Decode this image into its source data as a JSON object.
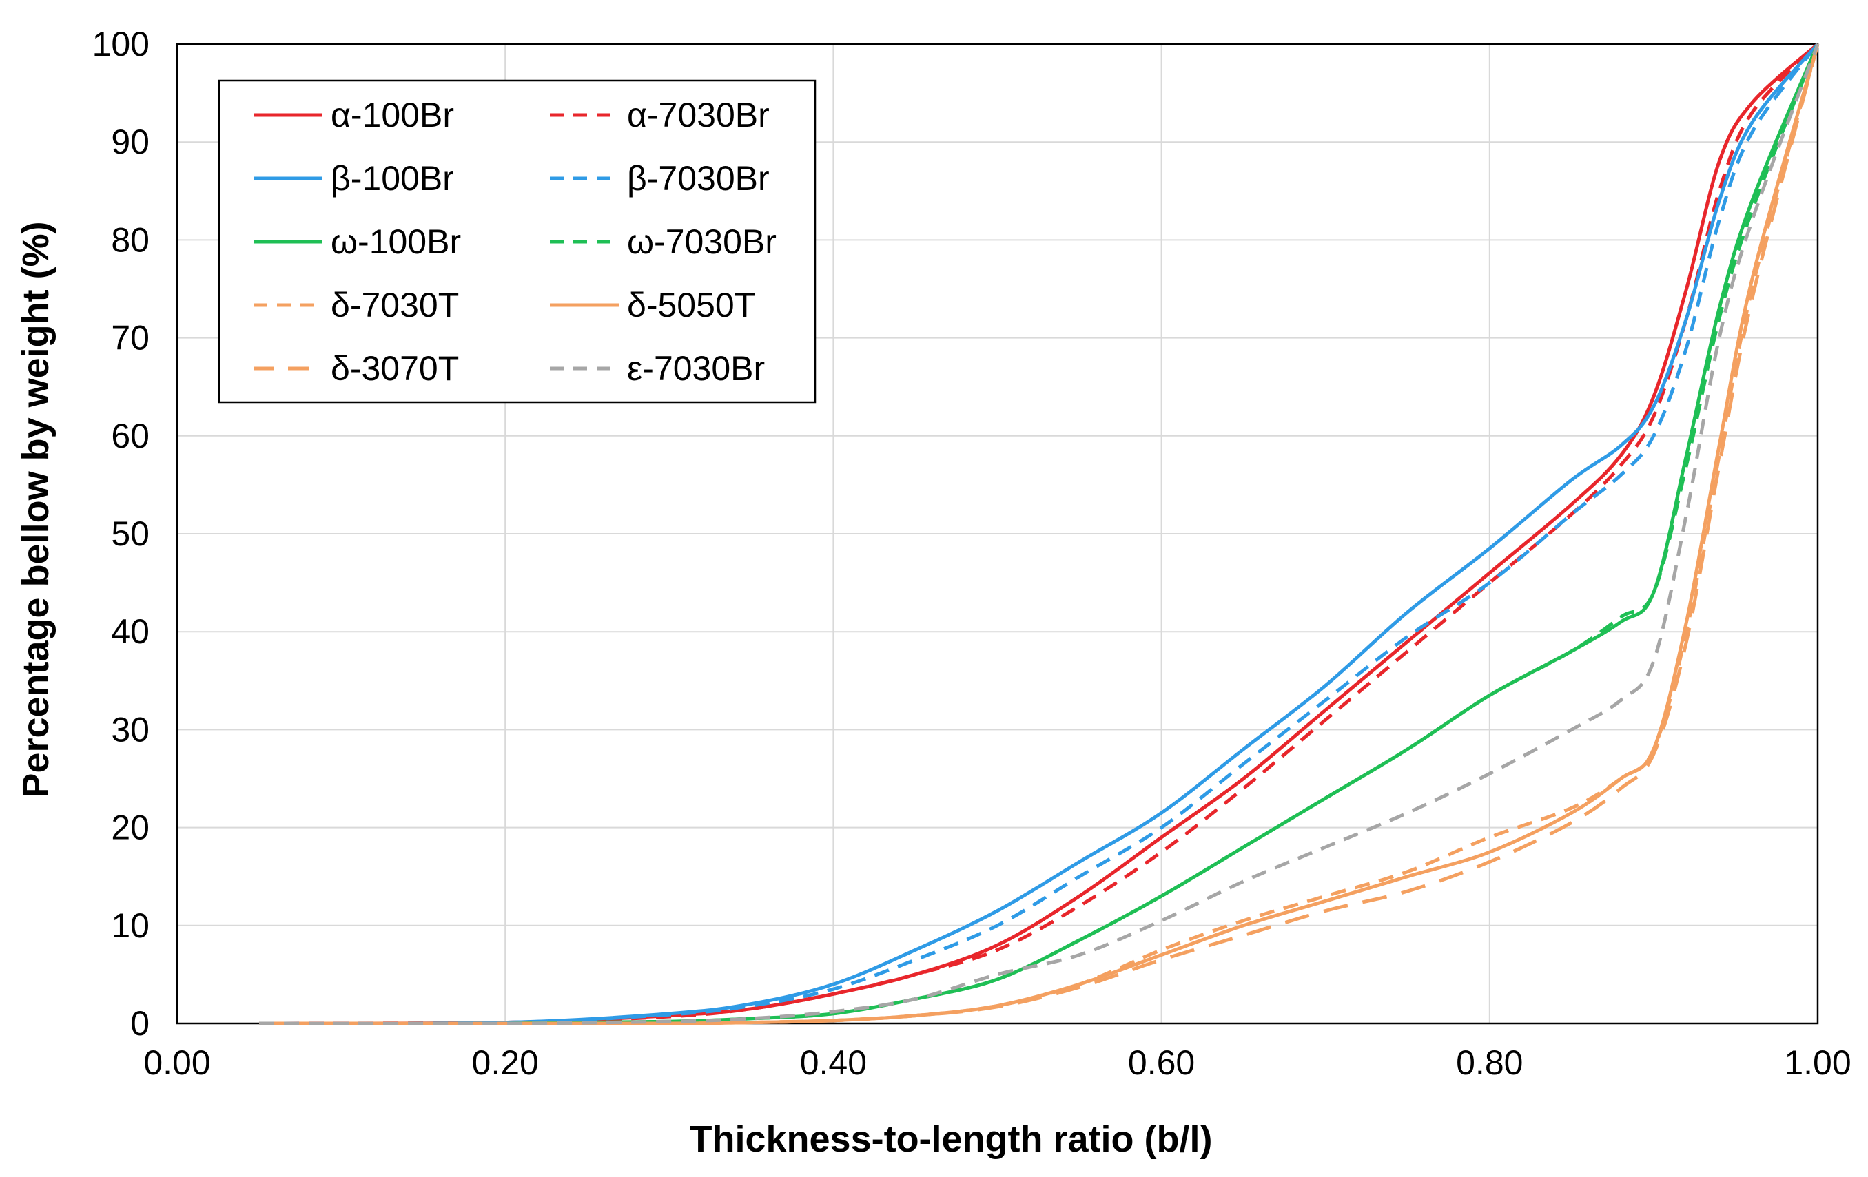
{
  "chart_data": {
    "type": "line",
    "title": "",
    "xlabel": "Thickness-to-length ratio (b/l)",
    "ylabel": "Percentage bellow by weight (%)",
    "xlim": [
      0.0,
      1.0
    ],
    "ylim": [
      0,
      100
    ],
    "xticks": [
      0.0,
      0.2,
      0.4,
      0.6,
      0.8,
      1.0
    ],
    "xtick_labels": [
      "0.00",
      "0.20",
      "0.40",
      "0.60",
      "0.80",
      "1.00"
    ],
    "yticks": [
      0,
      10,
      20,
      30,
      40,
      50,
      60,
      70,
      80,
      90,
      100
    ],
    "ytick_labels": [
      "0",
      "10",
      "20",
      "30",
      "40",
      "50",
      "60",
      "70",
      "80",
      "90",
      "100"
    ],
    "grid": true,
    "legend_position": "top-left",
    "series": [
      {
        "name": "α-100Br",
        "color": "#e8262b",
        "dash": "solid",
        "x": [
          0.05,
          0.2,
          0.3,
          0.35,
          0.4,
          0.45,
          0.5,
          0.55,
          0.6,
          0.65,
          0.7,
          0.75,
          0.8,
          0.85,
          0.88,
          0.9,
          0.92,
          0.94,
          0.96,
          1.0
        ],
        "y": [
          0,
          0.1,
          0.8,
          1.5,
          3,
          5,
          8,
          13,
          19,
          25,
          32,
          39,
          46,
          53,
          58,
          64,
          75,
          88,
          94,
          100
        ]
      },
      {
        "name": "α-7030Br",
        "color": "#e8262b",
        "dash": "dashed",
        "x": [
          0.05,
          0.2,
          0.3,
          0.35,
          0.4,
          0.45,
          0.5,
          0.55,
          0.6,
          0.65,
          0.7,
          0.75,
          0.8,
          0.85,
          0.88,
          0.9,
          0.92,
          0.94,
          0.96,
          1.0
        ],
        "y": [
          0,
          0.1,
          0.7,
          1.5,
          3,
          5,
          7.5,
          12,
          17.5,
          24,
          31,
          38,
          45,
          52,
          57,
          62,
          72,
          85,
          93,
          100
        ]
      },
      {
        "name": "β-100Br",
        "color": "#2f9be6",
        "dash": "solid",
        "x": [
          0.05,
          0.2,
          0.3,
          0.35,
          0.4,
          0.45,
          0.5,
          0.55,
          0.6,
          0.65,
          0.7,
          0.75,
          0.8,
          0.85,
          0.88,
          0.9,
          0.92,
          0.94,
          0.96,
          1.0
        ],
        "y": [
          0,
          0.1,
          1,
          2,
          4,
          7.5,
          11.5,
          16.5,
          21.5,
          28,
          34.5,
          42,
          48.5,
          55.5,
          59,
          63,
          72,
          84,
          92,
          100
        ]
      },
      {
        "name": "β-7030Br",
        "color": "#2f9be6",
        "dash": "dashed",
        "x": [
          0.05,
          0.2,
          0.3,
          0.35,
          0.4,
          0.45,
          0.5,
          0.55,
          0.6,
          0.65,
          0.7,
          0.75,
          0.8,
          0.85,
          0.88,
          0.9,
          0.92,
          0.94,
          0.96,
          1.0
        ],
        "y": [
          0,
          0.1,
          0.9,
          1.8,
          3.5,
          6.5,
          10,
          15,
          20,
          26.5,
          33,
          39.5,
          45,
          52,
          56,
          60,
          69,
          82,
          91,
          100
        ]
      },
      {
        "name": "ω-100Br",
        "color": "#1fbf55",
        "dash": "solid",
        "x": [
          0.05,
          0.2,
          0.3,
          0.35,
          0.4,
          0.45,
          0.5,
          0.55,
          0.6,
          0.65,
          0.7,
          0.75,
          0.8,
          0.85,
          0.88,
          0.9,
          0.92,
          0.94,
          0.96,
          1.0
        ],
        "y": [
          0,
          0,
          0.2,
          0.5,
          1,
          2.5,
          4.5,
          8.5,
          13,
          18,
          23,
          28,
          33.5,
          38,
          41,
          44,
          58,
          73,
          84,
          100
        ]
      },
      {
        "name": "ω-7030Br",
        "color": "#1fbf55",
        "dash": "dashed",
        "x": [
          0.05,
          0.2,
          0.3,
          0.35,
          0.4,
          0.45,
          0.5,
          0.55,
          0.6,
          0.65,
          0.7,
          0.75,
          0.8,
          0.85,
          0.88,
          0.9,
          0.92,
          0.94,
          0.96,
          1.0
        ],
        "y": [
          0,
          0,
          0.2,
          0.5,
          1,
          2.5,
          4.5,
          8.5,
          13,
          18,
          23,
          28,
          33.5,
          38,
          41.5,
          44,
          57,
          72,
          83,
          100
        ]
      },
      {
        "name": "δ-7030T",
        "color": "#f4a060",
        "dash": "dashed",
        "x": [
          0.05,
          0.2,
          0.3,
          0.35,
          0.4,
          0.45,
          0.5,
          0.55,
          0.6,
          0.65,
          0.7,
          0.75,
          0.8,
          0.85,
          0.88,
          0.9,
          0.92,
          0.94,
          0.96,
          1.0
        ],
        "y": [
          0,
          0,
          0,
          0.1,
          0.3,
          0.8,
          1.8,
          4,
          7.5,
          10.5,
          13,
          15.5,
          19,
          22,
          25,
          28,
          40,
          58,
          75,
          100
        ]
      },
      {
        "name": "δ-5050T",
        "color": "#f4a060",
        "dash": "solid",
        "x": [
          0.05,
          0.2,
          0.3,
          0.35,
          0.4,
          0.45,
          0.5,
          0.55,
          0.6,
          0.65,
          0.7,
          0.75,
          0.8,
          0.85,
          0.88,
          0.9,
          0.92,
          0.94,
          0.96,
          1.0
        ],
        "y": [
          0,
          0,
          0,
          0.1,
          0.3,
          0.8,
          1.8,
          4,
          7,
          10,
          12.5,
          15,
          17.5,
          21.5,
          25,
          28,
          41,
          59,
          76,
          100
        ]
      },
      {
        "name": "δ-3070T",
        "color": "#f4a060",
        "dash": "longdash",
        "x": [
          0.05,
          0.2,
          0.3,
          0.35,
          0.4,
          0.45,
          0.5,
          0.55,
          0.6,
          0.65,
          0.7,
          0.75,
          0.8,
          0.85,
          0.88,
          0.9,
          0.92,
          0.94,
          0.96,
          1.0
        ],
        "y": [
          0,
          0,
          0,
          0.1,
          0.3,
          0.8,
          1.7,
          3.7,
          6.5,
          9,
          11.5,
          13.5,
          16.5,
          20.5,
          24,
          27.5,
          39,
          57,
          74,
          100
        ]
      },
      {
        "name": "ε-7030Br",
        "color": "#a6a6a6",
        "dash": "dashed",
        "x": [
          0.05,
          0.2,
          0.3,
          0.35,
          0.4,
          0.45,
          0.5,
          0.55,
          0.6,
          0.65,
          0.7,
          0.75,
          0.8,
          0.85,
          0.88,
          0.9,
          0.92,
          0.94,
          0.96,
          1.0
        ],
        "y": [
          0,
          0,
          0.2,
          0.5,
          1.2,
          2.5,
          5,
          7,
          10.5,
          14.5,
          18,
          21.5,
          25.5,
          30,
          33,
          37,
          52,
          70,
          82,
          100
        ]
      }
    ],
    "legend_rows": [
      [
        "α-100Br",
        "α-7030Br"
      ],
      [
        "β-100Br",
        "β-7030Br"
      ],
      [
        "ω-100Br",
        "ω-7030Br"
      ],
      [
        "δ-7030T",
        "δ-5050T"
      ],
      [
        "δ-3070T",
        "ε-7030Br"
      ]
    ]
  }
}
